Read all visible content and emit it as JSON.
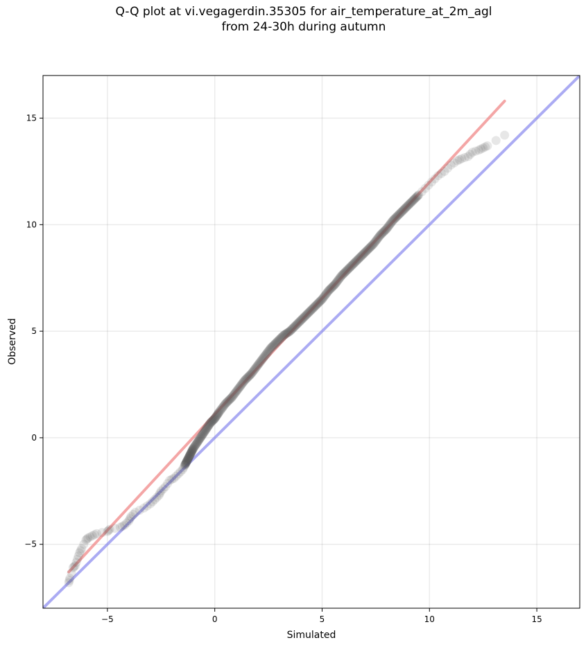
{
  "title_line1": "Q-Q plot at vi.vegagerdin.35305 for air_temperature_at_2m_agl",
  "title_line2": "from 24-30h during autumn",
  "chart_data": {
    "type": "scatter",
    "title": "Q-Q plot at vi.vegagerdin.35305 for air_temperature_at_2m_agl from 24-30h during autumn",
    "xlabel": "Simulated",
    "ylabel": "Observed",
    "xlim": [
      -8,
      17
    ],
    "ylim": [
      -8,
      17
    ],
    "xticks": [
      -5,
      0,
      5,
      10,
      15
    ],
    "yticks": [
      -5,
      0,
      5,
      10,
      15
    ],
    "xtick_labels": [
      "−5",
      "0",
      "5",
      "10",
      "15"
    ],
    "ytick_labels": [
      "−5",
      "0",
      "5",
      "10",
      "15"
    ],
    "grid": true,
    "colors": {
      "points": "#555555",
      "fit_line": "#f08080",
      "identity_line": "#8888ee"
    },
    "reference_lines": [
      {
        "role": "identity",
        "x": [
          -8,
          17
        ],
        "y": [
          -8,
          17
        ]
      },
      {
        "role": "fit",
        "x": [
          -6.8,
          13.5
        ],
        "y": [
          -6.3,
          15.8
        ]
      }
    ],
    "quantiles": {
      "x": [
        -6.8,
        -6.75,
        -6.6,
        -6.5,
        -6.4,
        -6.3,
        -6.2,
        -6.0,
        -5.9,
        -5.7,
        -5.5,
        -5.0,
        -4.9,
        -4.4,
        -4.2,
        -4.0,
        -3.9,
        -3.7,
        -3.3,
        -3.0,
        -2.8,
        -2.6,
        -2.5,
        -2.3,
        -2.1,
        -1.9,
        -1.7,
        -1.5,
        -1.4,
        -1.3,
        -1.2,
        -1.1,
        -1.0,
        -0.8,
        -0.6,
        -0.4,
        -0.2,
        0.0,
        0.2,
        0.5,
        0.8,
        1.1,
        1.4,
        1.7,
        2.0,
        2.3,
        2.6,
        2.9,
        3.2,
        3.5,
        3.8,
        4.1,
        4.4,
        4.7,
        5.0,
        5.3,
        5.6,
        5.9,
        6.2,
        6.5,
        6.8,
        7.1,
        7.4,
        7.7,
        8.0,
        8.3,
        8.6,
        8.9,
        9.2,
        9.5,
        9.8,
        10.1,
        10.4,
        10.7,
        11.0,
        11.3,
        11.5,
        11.8,
        12.0,
        12.3,
        12.5,
        12.7,
        13.5
      ],
      "y": [
        -6.8,
        -6.6,
        -6.1,
        -6.0,
        -5.7,
        -5.4,
        -5.2,
        -4.8,
        -4.7,
        -4.6,
        -4.5,
        -4.4,
        -4.3,
        -4.2,
        -4.1,
        -3.9,
        -3.7,
        -3.5,
        -3.3,
        -3.1,
        -2.9,
        -2.7,
        -2.5,
        -2.3,
        -2.0,
        -1.9,
        -1.7,
        -1.5,
        -1.3,
        -1.1,
        -0.9,
        -0.7,
        -0.5,
        -0.2,
        0.1,
        0.4,
        0.7,
        0.9,
        1.2,
        1.6,
        1.9,
        2.3,
        2.7,
        3.0,
        3.4,
        3.8,
        4.2,
        4.5,
        4.8,
        5.0,
        5.3,
        5.6,
        5.9,
        6.2,
        6.5,
        6.9,
        7.2,
        7.6,
        7.9,
        8.2,
        8.5,
        8.8,
        9.1,
        9.5,
        9.8,
        10.2,
        10.5,
        10.8,
        11.1,
        11.4,
        11.7,
        12.0,
        12.3,
        12.5,
        12.8,
        13.0,
        13.1,
        13.2,
        13.4,
        13.5,
        13.6,
        13.7,
        14.2
      ]
    }
  }
}
